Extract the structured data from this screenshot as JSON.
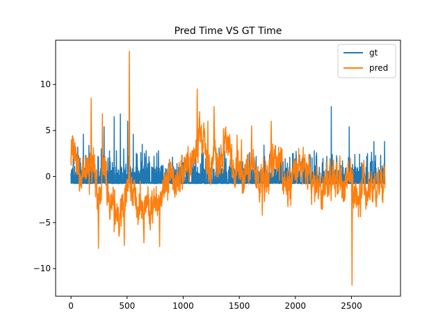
{
  "chart_data": {
    "type": "line",
    "title": "Pred Time VS GT Time",
    "xlabel": "",
    "ylabel": "",
    "xlim": [
      -137,
      2937
    ],
    "ylim": [
      -13.0,
      14.8
    ],
    "x_ticks": [
      0,
      500,
      1000,
      1500,
      2000,
      2500
    ],
    "y_ticks": [
      -10,
      -5,
      0,
      5,
      10
    ],
    "legend_position": "top-right",
    "n_points": 2800,
    "series": [
      {
        "name": "gt",
        "color": "#1f77b4",
        "baseline": -0.7,
        "spikes": [
          [
            5,
            -0.5
          ],
          [
            20,
            2.5
          ],
          [
            60,
            3.2
          ],
          [
            80,
            2.0
          ],
          [
            110,
            4.6
          ],
          [
            130,
            2.3
          ],
          [
            160,
            3.4
          ],
          [
            200,
            1.5
          ],
          [
            240,
            2.2
          ],
          [
            270,
            3.0
          ],
          [
            295,
            5.4
          ],
          [
            330,
            2.0
          ],
          [
            350,
            1.6
          ],
          [
            385,
            6.5
          ],
          [
            405,
            2.8
          ],
          [
            440,
            6.8
          ],
          [
            470,
            3.0
          ],
          [
            505,
            6.0
          ],
          [
            555,
            4.6
          ],
          [
            590,
            2.4
          ],
          [
            635,
            3.5
          ],
          [
            670,
            2.8
          ],
          [
            700,
            1.6
          ],
          [
            740,
            2.2
          ],
          [
            780,
            2.8
          ],
          [
            820,
            1.2
          ],
          [
            870,
            1.4
          ],
          [
            905,
            2.1
          ],
          [
            960,
            1.0
          ],
          [
            1000,
            1.5
          ],
          [
            1050,
            2.1
          ],
          [
            1100,
            1.1
          ],
          [
            1165,
            2.5
          ],
          [
            1200,
            1.9
          ],
          [
            1250,
            1.6
          ],
          [
            1320,
            3.1
          ],
          [
            1380,
            1.5
          ],
          [
            1420,
            1.8
          ],
          [
            1480,
            2.1
          ],
          [
            1530,
            1.6
          ],
          [
            1590,
            2.6
          ],
          [
            1650,
            2.2
          ],
          [
            1720,
            3.4
          ],
          [
            1770,
            2.4
          ],
          [
            1840,
            2.0
          ],
          [
            1890,
            1.6
          ],
          [
            1950,
            2.1
          ],
          [
            2010,
            1.2
          ],
          [
            2080,
            1.5
          ],
          [
            2130,
            2.4
          ],
          [
            2190,
            1.8
          ],
          [
            2240,
            1.5
          ],
          [
            2280,
            2.2
          ],
          [
            2320,
            7.6
          ],
          [
            2370,
            2.0
          ],
          [
            2420,
            1.7
          ],
          [
            2480,
            5.4
          ],
          [
            2530,
            2.4
          ],
          [
            2590,
            1.5
          ],
          [
            2640,
            1.8
          ],
          [
            2700,
            3.8
          ],
          [
            2760,
            2.3
          ],
          [
            2795,
            3.8
          ]
        ]
      },
      {
        "name": "pred",
        "color": "#ff7f0e",
        "envelope": [
          [
            0,
            2.0
          ],
          [
            20,
            3.0
          ],
          [
            60,
            0.5
          ],
          [
            100,
            -1.0
          ],
          [
            140,
            0.2
          ],
          [
            180,
            1.5
          ],
          [
            210,
            2.0
          ],
          [
            240,
            -2.5
          ],
          [
            270,
            -1.5
          ],
          [
            300,
            0.5
          ],
          [
            340,
            -3.5
          ],
          [
            380,
            -2.0
          ],
          [
            420,
            -4.5
          ],
          [
            460,
            -3.0
          ],
          [
            500,
            -2.0
          ],
          [
            530,
            0.5
          ],
          [
            560,
            -2.0
          ],
          [
            600,
            -3.5
          ],
          [
            640,
            -2.8
          ],
          [
            680,
            -4.0
          ],
          [
            720,
            -2.5
          ],
          [
            760,
            -3.5
          ],
          [
            800,
            -1.5
          ],
          [
            840,
            -1.0
          ],
          [
            880,
            0.0
          ],
          [
            920,
            -1.0
          ],
          [
            960,
            0.0
          ],
          [
            1000,
            0.3
          ],
          [
            1040,
            1.5
          ],
          [
            1080,
            2.0
          ],
          [
            1120,
            3.5
          ],
          [
            1160,
            4.5
          ],
          [
            1200,
            2.0
          ],
          [
            1240,
            1.0
          ],
          [
            1280,
            3.0
          ],
          [
            1320,
            1.5
          ],
          [
            1360,
            2.5
          ],
          [
            1400,
            3.0
          ],
          [
            1440,
            1.5
          ],
          [
            1480,
            1.0
          ],
          [
            1520,
            0.0
          ],
          [
            1560,
            0.5
          ],
          [
            1600,
            1.5
          ],
          [
            1640,
            -0.5
          ],
          [
            1680,
            -2.0
          ],
          [
            1720,
            -1.0
          ],
          [
            1760,
            1.0
          ],
          [
            1800,
            2.5
          ],
          [
            1840,
            2.0
          ],
          [
            1880,
            1.0
          ],
          [
            1920,
            -1.0
          ],
          [
            1960,
            -0.5
          ],
          [
            2000,
            0.5
          ],
          [
            2040,
            1.5
          ],
          [
            2080,
            0.5
          ],
          [
            2120,
            0.0
          ],
          [
            2160,
            -1.0
          ],
          [
            2200,
            -0.5
          ],
          [
            2240,
            -1.5
          ],
          [
            2280,
            -1.0
          ],
          [
            2320,
            -0.5
          ],
          [
            2360,
            -1.0
          ],
          [
            2400,
            0.0
          ],
          [
            2440,
            -1.0
          ],
          [
            2480,
            0.5
          ],
          [
            2520,
            -1.0
          ],
          [
            2560,
            -2.0
          ],
          [
            2600,
            -1.0
          ],
          [
            2640,
            -1.5
          ],
          [
            2680,
            -0.5
          ],
          [
            2720,
            -1.5
          ],
          [
            2760,
            -0.5
          ],
          [
            2799,
            0.0
          ]
        ],
        "extremes": [
          [
            5,
            4.0
          ],
          [
            180,
            8.5
          ],
          [
            245,
            -7.8
          ],
          [
            280,
            6.8
          ],
          [
            385,
            -6.0
          ],
          [
            475,
            -7.5
          ],
          [
            520,
            13.6
          ],
          [
            650,
            -7.2
          ],
          [
            790,
            -7.6
          ],
          [
            1125,
            9.5
          ],
          [
            1220,
            6.0
          ],
          [
            1275,
            7.6
          ],
          [
            1360,
            5.2
          ],
          [
            1480,
            4.5
          ],
          [
            1520,
            4.0
          ],
          [
            1610,
            5.5
          ],
          [
            1705,
            -4.2
          ],
          [
            1785,
            6.0
          ],
          [
            1880,
            3.0
          ],
          [
            2050,
            1.0
          ],
          [
            2230,
            -3.5
          ],
          [
            2505,
            -11.8
          ],
          [
            2720,
            -3.3
          ]
        ]
      }
    ]
  }
}
